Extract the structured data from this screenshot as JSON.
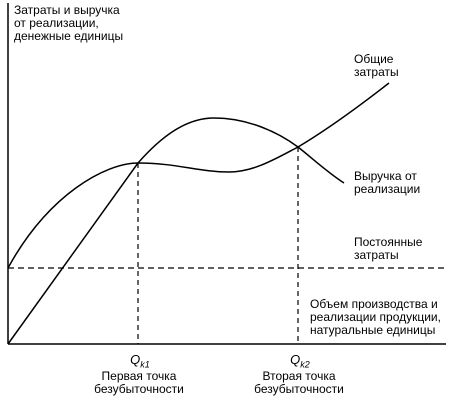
{
  "chart_data": {
    "type": "line",
    "ylabel": "Затраты и выручка\nот реализации,\nденежные единицы",
    "xlabel": "Объем производства и\nреализации продукции,\nнатуральные единицы",
    "series": [
      {
        "name": "Общие\nзатраты",
        "shape": "S-curve rising from fixed-cost level"
      },
      {
        "name": "Выручка от\nреализации",
        "shape": "hump from origin"
      },
      {
        "name": "Постоянные\nзатраты",
        "shape": "horizontal dashed"
      }
    ],
    "x_axis_points": [
      {
        "symbol": "Q",
        "subscript": "k1",
        "caption": "Первая точка\nбезубыточности"
      },
      {
        "symbol": "Q",
        "subscript": "k2",
        "caption": "Вторая точка\nбезубыточности"
      }
    ],
    "grid": false,
    "legend": "labels next to curves"
  }
}
